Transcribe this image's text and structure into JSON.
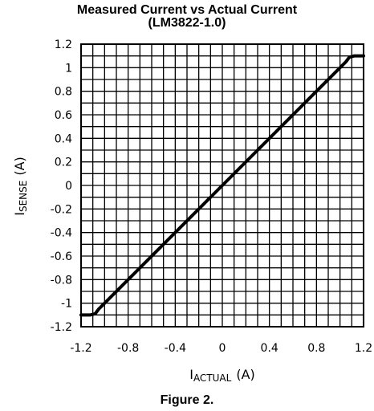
{
  "chart_data": {
    "type": "line",
    "title_line1": "Measured Current vs Actual Current",
    "title_line2": "(LM3822-1.0)",
    "xlabel_main": "I",
    "xlabel_sub": "ACTUAL",
    "xlabel_unit": "(A)",
    "ylabel_main": "I",
    "ylabel_sub": "SENSE",
    "ylabel_unit": "(A)",
    "xlim": [
      -1.2,
      1.2
    ],
    "ylim": [
      -1.2,
      1.2
    ],
    "x_ticks": [
      "-1.2",
      "-0.8",
      "-0.4",
      "0",
      "0.4",
      "0.8",
      "1.2"
    ],
    "x_tick_values": [
      -1.2,
      -0.8,
      -0.4,
      0,
      0.4,
      0.8,
      1.2
    ],
    "y_ticks": [
      "1.2",
      "1",
      "0.8",
      "0.6",
      "0.4",
      "0.2",
      "0",
      "-0.2",
      "-0.4",
      "-0.6",
      "-0.8",
      "-1",
      "-1.2"
    ],
    "y_tick_values": [
      1.2,
      1.0,
      0.8,
      0.6,
      0.4,
      0.2,
      0,
      -0.2,
      -0.4,
      -0.6,
      -0.8,
      -1.0,
      -1.2
    ],
    "x_grid_step": 0.1,
    "y_grid_step": 0.1,
    "grid": true,
    "series": [
      {
        "x": [
          -1.2,
          -1.12,
          -1.08,
          -1.05,
          -1.0,
          0,
          1.0,
          1.05,
          1.08,
          1.12,
          1.2
        ],
        "y": [
          -1.1,
          -1.1,
          -1.09,
          -1.05,
          -1.0,
          0,
          1.0,
          1.05,
          1.09,
          1.1,
          1.1
        ]
      }
    ]
  },
  "caption": "Figure 2."
}
